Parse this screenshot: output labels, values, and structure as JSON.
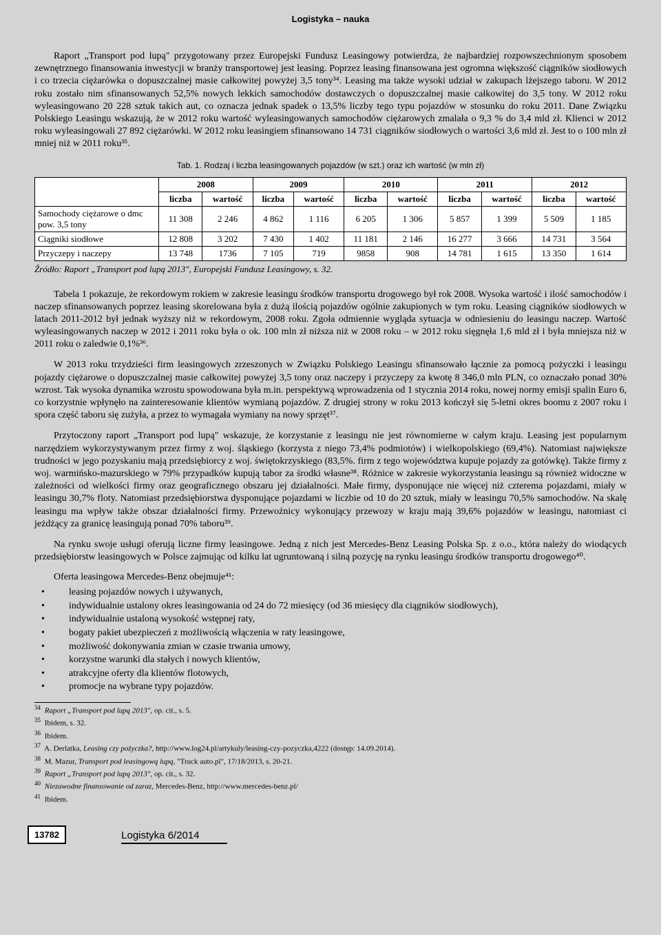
{
  "header": {
    "title": "Logistyka – nauka"
  },
  "paragraphs": {
    "p1": "Raport „Transport pod lupą\" przygotowany przez Europejski Fundusz Leasingowy potwierdza, że najbardziej rozpowszechnionym sposobem zewnętrznego finansowania inwestycji w branży transportowej jest leasing. Poprzez leasing finansowana jest ogromna większość ciągników siodłowych i co trzecia ciężarówka o dopuszczalnej masie całkowitej powyżej 3,5 tony³⁴. Leasing ma także wysoki udział w zakupach lżejszego taboru. W 2012 roku zostało nim sfinansowanych 52,5% nowych lekkich samochodów dostawczych o dopuszczalnej masie całkowitej do 3,5 tony. W 2012 roku wyleasingowano 20 228 sztuk takich aut, co oznacza jednak spadek o 13,5% liczby tego typu pojazdów w stosunku do roku 2011. Dane Związku Polskiego Leasingu wskazują, że w 2012 roku wartość wyleasingowanych samochodów ciężarowych zmalała o 9,3 % do 3,4 mld zł. Klienci w 2012 roku wyleasingowali 27 892 ciężarówki. W 2012 roku leasingiem sfinansowano 14 731 ciągników siodłowych o wartości 3,6 mld zł. Jest to o 100 mln zł mniej niż w 2011 roku³⁵.",
    "p2": "Tabela 1 pokazuje, że rekordowym rokiem w zakresie leasingu środków transportu drogowego był rok 2008. Wysoka wartość i ilość samochodów i naczep sfinansowanych poprzez leasing skorelowana była z dużą ilością pojazdów ogólnie zakupionych w tym roku. Leasing ciągników siodłowych w latach 2011-2012 był jednak wyższy niż w rekordowym, 2008 roku. Zgoła odmiennie wygląda sytuacja w odniesieniu do leasingu naczep. Wartość wyleasingowanych naczep w 2012 i 2011 roku była o ok. 100 mln zł niższa niż w 2008 roku – w 2012 roku sięgnęła 1,6 mld zł i była mniejsza niż w 2011 roku o zaledwie 0,1%³⁶.",
    "p3": "W 2013 roku trzydzieści firm leasingowych zrzeszonych w Związku Polskiego Leasingu sfinansowało łącznie za pomocą pożyczki i leasingu pojazdy ciężarowe o dopuszczalnej masie całkowitej powyżej 3,5 tony oraz naczepy i przyczepy za kwotę 8 346,0 mln PLN, co oznaczało ponad 30% wzrost. Tak wysoka dynamika wzrostu spowodowana była m.in. perspektywą wprowadzenia od 1 stycznia 2014 roku, nowej normy emisji spalin Euro 6, co korzystnie wpłynęło na zainteresowanie klientów wymianą pojazdów. Z drugiej strony w roku 2013 kończył się 5-letni okres boomu z 2007 roku i spora część taboru się zużyła, a przez to wymagała wymiany na nowy sprzęt³⁷.",
    "p4": "Przytoczony raport „Transport pod lupą\" wskazuje, że korzystanie z leasingu nie jest równomierne w całym kraju. Leasing jest popularnym narzędziem wykorzystywanym przez firmy z woj. śląskiego (korzysta z niego 73,4% podmiotów) i wielkopolskiego (69,4%). Natomiast największe trudności w jego pozyskaniu mają przedsiębiorcy z woj. świętokrzyskiego (83,5%. firm z tego województwa kupuje pojazdy za gotówkę). Także firmy z woj. warmińsko-mazurskiego w 79% przypadków kupują tabor za środki własne³⁸. Różnice w zakresie wykorzystania leasingu są również widoczne w zależności od wielkości firmy oraz geograficznego obszaru jej działalności. Małe firmy, dysponujące nie więcej niż czterema pojazdami, miały w leasingu 30,7% floty. Natomiast przedsiębiorstwa dysponujące pojazdami w liczbie od 10 do 20 sztuk, miały w leasingu 70,5% samochodów. Na skalę leasingu ma wpływ także obszar działalności firmy. Przewoźnicy wykonujący przewozy w kraju mają 39,6% pojazdów w leasingu, natomiast ci jeżdżący za granicę leasingują ponad 70% taboru³⁹.",
    "p5": "Na rynku swoje usługi oferują liczne firmy leasingowe. Jedną z nich jest Mercedes-Benz Leasing Polska Sp. z o.o., która należy do wiodących przedsiębiorstw leasingowych w Polsce zajmując od kilku lat ugruntowaną i silną pozycję na rynku leasingu środków transportu drogowego⁴⁰."
  },
  "table": {
    "caption": "Tab. 1. Rodzaj i liczba leasingowanych pojazdów (w szt.) oraz ich wartość (w mln zł)",
    "years": [
      "2008",
      "2009",
      "2010",
      "2011",
      "2012"
    ],
    "subheaders": {
      "liczba": "liczba",
      "wartosc": "wartość"
    },
    "rows": [
      {
        "label": "Samochody ciężarowe o dmc pow. 3,5 tony",
        "cells": [
          "11 308",
          "2 246",
          "4 862",
          "1 116",
          "6 205",
          "1 306",
          "5 857",
          "1 399",
          "5 509",
          "1 185"
        ]
      },
      {
        "label": "Ciągniki siodłowe",
        "cells": [
          "12 808",
          "3 202",
          "7 430",
          "1 402",
          "11 181",
          "2 146",
          "16 277",
          "3 666",
          "14 731",
          "3 564"
        ]
      },
      {
        "label": "Przyczepy i naczepy",
        "cells": [
          "13 748",
          "1736",
          "7 105",
          "719",
          "9858",
          "908",
          "14 781",
          "1 615",
          "13 350",
          "1 614"
        ]
      }
    ],
    "source": "Źródło: Raport „Transport pod lupą 2013\", Europejski Fundusz Leasingowy, s. 32."
  },
  "list": {
    "intro": "Oferta leasingowa Mercedes-Benz obejmuje⁴¹:",
    "items": [
      "leasing pojazdów nowych i używanych,",
      "indywidualnie ustalony okres leasingowania od 24 do 72 miesięcy (od 36 miesięcy dla ciągników siodłowych),",
      "indywidualnie ustaloną wysokość wstępnej raty,",
      "bogaty pakiet ubezpieczeń z możliwością włączenia w raty leasingowe,",
      "możliwość dokonywania zmian w czasie trwania umowy,",
      "korzystne warunki dla stałych i nowych klientów,",
      "atrakcyjne oferty dla klientów flotowych,",
      "promocje na wybrane typy pojazdów."
    ]
  },
  "footnotes": [
    {
      "num": "34",
      "text_italic": "Raport „Transport pod lupą 2013\"",
      "text_rest": ", op. cit., s. 5."
    },
    {
      "num": "35",
      "text_italic": "",
      "text_rest": "Ibidem, s. 32."
    },
    {
      "num": "36",
      "text_italic": "",
      "text_rest": "Ibidem."
    },
    {
      "num": "37",
      "text_italic": "Leasing czy pożyczka?",
      "text_rest": ", http://www.log24.pl/artykuly/leasing-czy-pozyczka,4222 (dostęp: 14.09.2014).",
      "prefix": "A. Derlatka, "
    },
    {
      "num": "38",
      "text_italic": "Transport pod leasingową lupą",
      "text_rest": ", \"Truck auto.pl\", 17/18/2013, s. 20-21.",
      "prefix": "M. Mazur, "
    },
    {
      "num": "39",
      "text_italic": "Raport „Transport pod lupą 2013\"",
      "text_rest": ", op. cit., s. 32."
    },
    {
      "num": "40",
      "text_italic": "Niezawodne finansowanie od zaraz",
      "text_rest": ", Mercedes-Benz, http://www.mercedes-benz.pl/"
    },
    {
      "num": "41",
      "text_italic": "",
      "text_rest": "Ibidem."
    }
  ],
  "footer": {
    "pageNumber": "13782",
    "journal": "Logistyka 6/2014"
  }
}
